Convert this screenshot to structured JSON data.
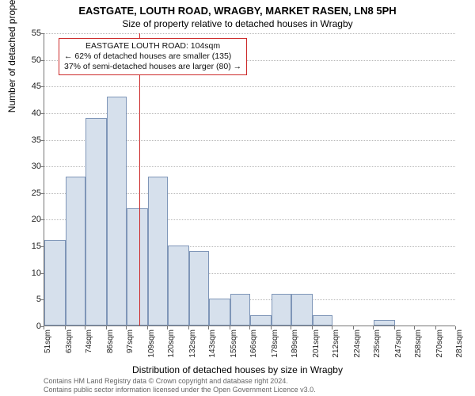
{
  "title_main": "EASTGATE, LOUTH ROAD, WRAGBY, MARKET RASEN, LN8 5PH",
  "title_sub": "Size of property relative to detached houses in Wragby",
  "y_axis_label": "Number of detached properties",
  "x_axis_label": "Distribution of detached houses by size in Wragby",
  "footer_line1": "Contains HM Land Registry data © Crown copyright and database right 2024.",
  "footer_line2": "Contains public sector information licensed under the Open Government Licence v3.0.",
  "annotation": {
    "line1": "EASTGATE LOUTH ROAD: 104sqm",
    "line2": "← 62% of detached houses are smaller (135)",
    "line3": "37% of semi-detached houses are larger (80) →"
  },
  "chart": {
    "type": "histogram",
    "y_min": 0,
    "y_max": 55,
    "y_tick_step": 5,
    "bar_fill": "#d6e0ec",
    "bar_border": "#7f96b8",
    "grid_color": "#b8b8b8",
    "axis_color": "#777777",
    "background": "#ffffff",
    "marker_color": "#cc2a2a",
    "marker_x_sqm": 104,
    "x_ticks": [
      51,
      63,
      74,
      86,
      97,
      109,
      120,
      132,
      143,
      155,
      166,
      178,
      189,
      201,
      212,
      224,
      235,
      247,
      258,
      270,
      281
    ],
    "x_tick_unit": "sqm",
    "bars": [
      {
        "x0": 51,
        "x1": 63,
        "count": 16
      },
      {
        "x0": 63,
        "x1": 74,
        "count": 28
      },
      {
        "x0": 74,
        "x1": 86,
        "count": 39
      },
      {
        "x0": 86,
        "x1": 97,
        "count": 43
      },
      {
        "x0": 97,
        "x1": 109,
        "count": 22
      },
      {
        "x0": 109,
        "x1": 120,
        "count": 28
      },
      {
        "x0": 120,
        "x1": 132,
        "count": 15
      },
      {
        "x0": 132,
        "x1": 143,
        "count": 14
      },
      {
        "x0": 143,
        "x1": 155,
        "count": 5
      },
      {
        "x0": 155,
        "x1": 166,
        "count": 6
      },
      {
        "x0": 166,
        "x1": 178,
        "count": 2
      },
      {
        "x0": 178,
        "x1": 189,
        "count": 6
      },
      {
        "x0": 189,
        "x1": 201,
        "count": 6
      },
      {
        "x0": 201,
        "x1": 212,
        "count": 2
      },
      {
        "x0": 212,
        "x1": 224,
        "count": 0
      },
      {
        "x0": 224,
        "x1": 235,
        "count": 0
      },
      {
        "x0": 235,
        "x1": 247,
        "count": 1
      },
      {
        "x0": 247,
        "x1": 258,
        "count": 0
      },
      {
        "x0": 258,
        "x1": 270,
        "count": 0
      },
      {
        "x0": 270,
        "x1": 281,
        "count": 0
      }
    ]
  }
}
